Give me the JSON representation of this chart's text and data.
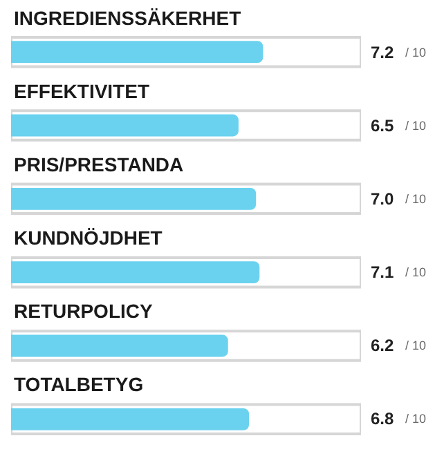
{
  "chart_data": {
    "type": "bar",
    "orientation": "horizontal",
    "categories": [
      "INGREDIENSSÄKERHET",
      "EFFEKTIVITET",
      "PRIS/PRESTANDA",
      "KUNDNÖJDHET",
      "RETURPOLICY",
      "TOTALBETYG"
    ],
    "values": [
      7.2,
      6.5,
      7.0,
      7.1,
      6.2,
      6.8
    ],
    "value_labels": [
      "7.2",
      "6.5",
      "7.0",
      "7.1",
      "6.2",
      "6.8"
    ],
    "annotations": [
      "/ 10",
      "/ 10",
      "/ 10",
      "/ 10",
      "/ 10",
      "/ 10"
    ],
    "color": "#6ad2ef",
    "xlim": [
      0,
      10
    ],
    "grid": false
  }
}
